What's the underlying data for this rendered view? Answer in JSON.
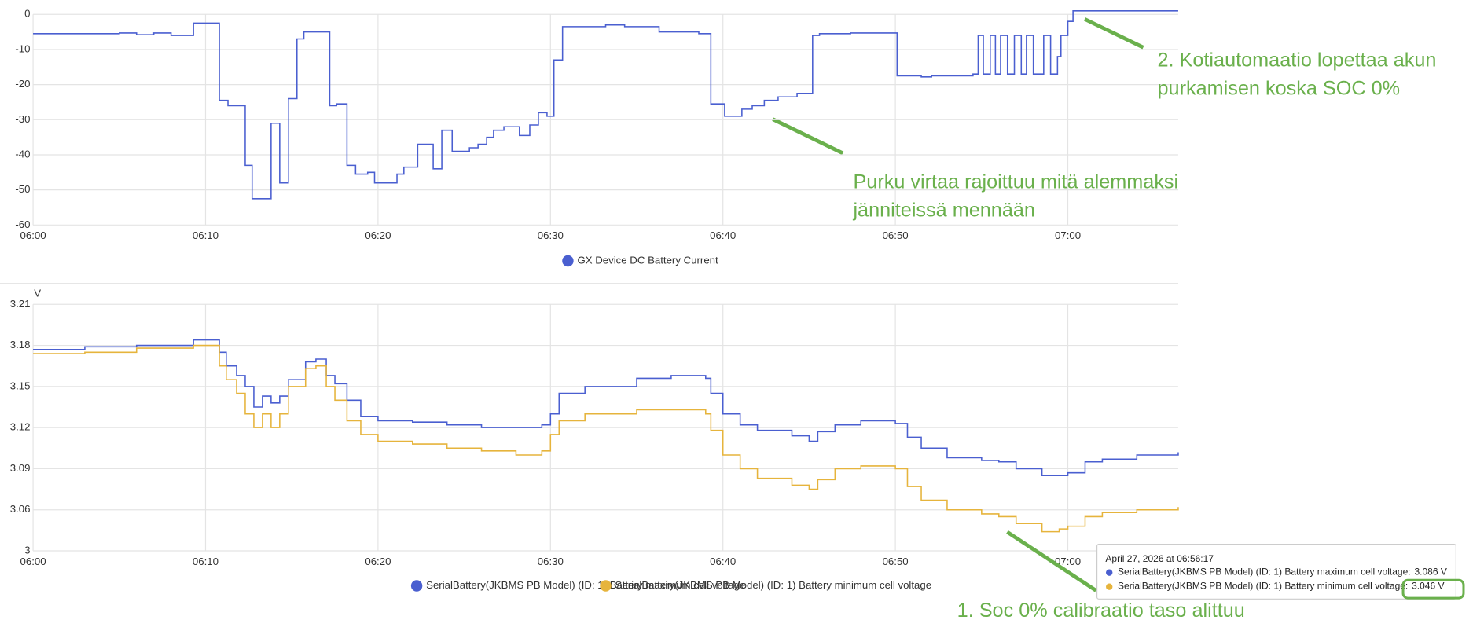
{
  "chart_data": [
    {
      "type": "line",
      "step": true,
      "legend": "bottom",
      "xlim": [
        0,
        66.4
      ],
      "xticks": [
        {
          "value": 0,
          "label": "06:00"
        },
        {
          "value": 10,
          "label": "06:10"
        },
        {
          "value": 20,
          "label": "06:20"
        },
        {
          "value": 30,
          "label": "06:30"
        },
        {
          "value": 40,
          "label": "06:40"
        },
        {
          "value": 50,
          "label": "06:50"
        },
        {
          "value": 60,
          "label": "07:00"
        }
      ],
      "ylim": [
        -60,
        0
      ],
      "yticks": [
        -60,
        -50,
        -40,
        -30,
        -20,
        -10,
        0
      ],
      "grid": true,
      "x": [
        0,
        5,
        6,
        7,
        8,
        9.3,
        10.8,
        11.3,
        12.3,
        12.7,
        13.8,
        14.3,
        14.8,
        15.3,
        15.7,
        17.2,
        17.6,
        18.2,
        18.7,
        19.4,
        19.8,
        20.7,
        21.1,
        21.5,
        22.3,
        23.2,
        23.7,
        24.3,
        25.3,
        25.8,
        26.3,
        26.7,
        27.3,
        28.2,
        28.8,
        29.3,
        29.8,
        30.2,
        30.7,
        33.2,
        34.3,
        36.3,
        38.6,
        39.3,
        40.1,
        41.1,
        41.7,
        42.4,
        43.2,
        44.3,
        45.2,
        45.6,
        47.4,
        50.1,
        51.5,
        52.1,
        53.4,
        54.5,
        54.8,
        55.1,
        55.5,
        55.8,
        56.1,
        56.5,
        56.9,
        57.3,
        57.6,
        58,
        58.6,
        59,
        59.4,
        59.6,
        60,
        60.3,
        61,
        66.4
      ],
      "series": [
        {
          "name": "GX Device DC Battery Current",
          "color": "#4a5fd0",
          "values": [
            -5.5,
            -5.3,
            -5.8,
            -5.3,
            -6,
            -2.5,
            -24.5,
            -26,
            -43,
            -52.5,
            -31,
            -48,
            -24,
            -7,
            -5,
            -26,
            -25.5,
            -43,
            -45.5,
            -45,
            -48,
            -48,
            -45.5,
            -43.5,
            -37,
            -44,
            -33,
            -39,
            -38,
            -37,
            -35,
            -33,
            -32,
            -34.5,
            -31.5,
            -28,
            -29,
            -13,
            -3.5,
            -3,
            -3.5,
            -5,
            -5.5,
            -25.5,
            -29,
            -27,
            -26,
            -24.5,
            -23.5,
            -22.5,
            -6,
            -5.5,
            -5.3,
            -17.5,
            -17.8,
            -17.5,
            -17.5,
            -17,
            -6,
            -17,
            -6,
            -17,
            -6,
            -17,
            -6,
            -17,
            -6,
            -17,
            -6,
            -17,
            -12,
            -6,
            -2,
            1,
            1,
            1
          ]
        }
      ]
    },
    {
      "type": "line",
      "step": true,
      "legend": "bottom",
      "y_label": "V",
      "xlim": [
        0,
        66.4
      ],
      "xticks": [
        {
          "value": 0,
          "label": "06:00"
        },
        {
          "value": 10,
          "label": "06:10"
        },
        {
          "value": 20,
          "label": "06:20"
        },
        {
          "value": 30,
          "label": "06:30"
        },
        {
          "value": 40,
          "label": "06:40"
        },
        {
          "value": 50,
          "label": "06:50"
        },
        {
          "value": 60,
          "label": "07:00"
        }
      ],
      "ylim": [
        3.03,
        3.21
      ],
      "yticks": [
        {
          "value": 3.03,
          "label": "3"
        },
        3.06,
        3.09,
        3.12,
        3.15,
        3.18,
        3.21
      ],
      "grid": true,
      "x": [
        0,
        3,
        6,
        9.3,
        10.8,
        11.2,
        11.8,
        12.3,
        12.8,
        13.3,
        13.8,
        14.3,
        14.8,
        15.8,
        16.4,
        17,
        17.5,
        18.2,
        19,
        20,
        22,
        24,
        26,
        28,
        29.5,
        30,
        30.5,
        32,
        35,
        37,
        39,
        39.3,
        40,
        41,
        42,
        44,
        45,
        45.5,
        46.5,
        48,
        50,
        50.7,
        51.5,
        53,
        55,
        56,
        57,
        58.5,
        59.5,
        60,
        61,
        62,
        64,
        66.4
      ],
      "series": [
        {
          "name": "SerialBattery(JKBMS PB Model) (ID: 1) Battery maximum cell voltage",
          "color": "#4a5fd0",
          "values": [
            3.177,
            3.179,
            3.18,
            3.184,
            3.175,
            3.165,
            3.158,
            3.15,
            3.135,
            3.143,
            3.138,
            3.143,
            3.155,
            3.168,
            3.17,
            3.158,
            3.152,
            3.14,
            3.128,
            3.125,
            3.124,
            3.122,
            3.12,
            3.12,
            3.122,
            3.13,
            3.145,
            3.15,
            3.156,
            3.158,
            3.156,
            3.145,
            3.13,
            3.122,
            3.118,
            3.114,
            3.11,
            3.117,
            3.122,
            3.125,
            3.123,
            3.113,
            3.105,
            3.098,
            3.096,
            3.095,
            3.09,
            3.085,
            3.085,
            3.087,
            3.095,
            3.097,
            3.1,
            3.102
          ]
        },
        {
          "name": "SerialBattery(JKBMS PB Model) (ID: 1) Battery minimum cell voltage",
          "color": "#e6b43c",
          "values": [
            3.174,
            3.175,
            3.178,
            3.18,
            3.165,
            3.155,
            3.145,
            3.13,
            3.12,
            3.13,
            3.12,
            3.13,
            3.15,
            3.163,
            3.165,
            3.15,
            3.14,
            3.125,
            3.115,
            3.11,
            3.108,
            3.105,
            3.103,
            3.1,
            3.103,
            3.115,
            3.125,
            3.13,
            3.133,
            3.133,
            3.13,
            3.118,
            3.1,
            3.09,
            3.083,
            3.078,
            3.075,
            3.082,
            3.09,
            3.092,
            3.09,
            3.077,
            3.067,
            3.06,
            3.057,
            3.055,
            3.05,
            3.044,
            3.046,
            3.048,
            3.055,
            3.058,
            3.06,
            3.062
          ]
        }
      ]
    }
  ],
  "tooltip": {
    "title": "April 27, 2026 at 06:56:17",
    "rows": [
      {
        "label": "SerialBattery(JKBMS PB Model) (ID: 1) Battery maximum cell voltage:",
        "value": "3.086 V"
      },
      {
        "label": "SerialBattery(JKBMS PB Model) (ID: 1) Battery minimum cell voltage:",
        "value": "3.046 V"
      }
    ]
  },
  "annotations": [
    {
      "lines": [
        "2. Kotiautomaatio  lopettaa akun",
        "purkamisen koska SOC 0%"
      ]
    },
    {
      "lines": [
        "Purku virtaa rajoittuu mitä alemmaksi",
        "jänniteissä mennään"
      ]
    },
    {
      "lines": [
        "1. Soc 0% calibraatio taso alittuu"
      ]
    }
  ]
}
